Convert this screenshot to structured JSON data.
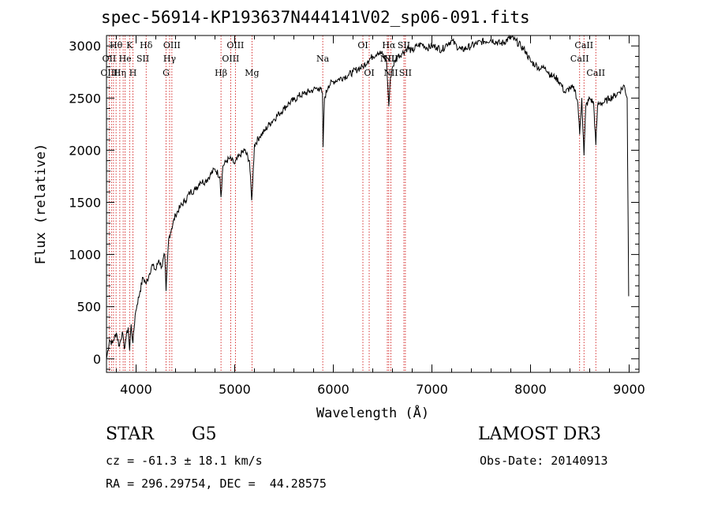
{
  "chart_data": {
    "type": "line",
    "title": "spec-56914-KP193637N444141V02_sp06-091.fits",
    "xlabel": "Wavelength (Å)",
    "ylabel": "Flux (relative)",
    "xlim": [
      3700,
      9100
    ],
    "ylim": [
      -130,
      3100
    ],
    "xticks": [
      4000,
      5000,
      6000,
      7000,
      8000,
      9000
    ],
    "yticks": [
      0,
      500,
      1000,
      1500,
      2000,
      2500,
      3000
    ],
    "grid": false,
    "series": [
      {
        "name": "flux",
        "x": [
          3700,
          3730,
          3760,
          3800,
          3830,
          3860,
          3880,
          3900,
          3920,
          3934,
          3950,
          3968,
          3990,
          4010,
          4040,
          4070,
          4102,
          4130,
          4160,
          4200,
          4230,
          4260,
          4290,
          4304,
          4330,
          4360,
          4400,
          4450,
          4500,
          4550,
          4600,
          4650,
          4700,
          4750,
          4800,
          4850,
          4861,
          4880,
          4920,
          4950,
          5000,
          5050,
          5100,
          5150,
          5172,
          5183,
          5200,
          5250,
          5300,
          5350,
          5400,
          5450,
          5500,
          5550,
          5600,
          5650,
          5700,
          5750,
          5800,
          5850,
          5890,
          5896,
          5910,
          5950,
          6000,
          6050,
          6100,
          6150,
          6200,
          6250,
          6300,
          6350,
          6400,
          6450,
          6500,
          6540,
          6563,
          6580,
          6600,
          6650,
          6700,
          6750,
          6800,
          6850,
          6900,
          6950,
          7000,
          7050,
          7100,
          7150,
          7200,
          7250,
          7300,
          7400,
          7500,
          7600,
          7700,
          7800,
          7850,
          7900,
          7950,
          8000,
          8050,
          8100,
          8150,
          8200,
          8250,
          8300,
          8350,
          8400,
          8450,
          8480,
          8498,
          8520,
          8542,
          8560,
          8600,
          8640,
          8662,
          8680,
          8700,
          8750,
          8800,
          8850,
          8900,
          8950,
          8980,
          8995
        ],
        "y": [
          0,
          180,
          150,
          250,
          120,
          260,
          100,
          210,
          300,
          80,
          330,
          150,
          420,
          520,
          650,
          780,
          720,
          800,
          900,
          850,
          950,
          880,
          1000,
          650,
          1150,
          1250,
          1380,
          1460,
          1520,
          1600,
          1620,
          1700,
          1700,
          1760,
          1820,
          1750,
          1550,
          1850,
          1900,
          1920,
          1870,
          1950,
          2000,
          1900,
          1520,
          1700,
          2050,
          2130,
          2180,
          2250,
          2300,
          2350,
          2400,
          2450,
          2480,
          2520,
          2540,
          2560,
          2580,
          2600,
          2550,
          2030,
          2500,
          2620,
          2660,
          2680,
          2700,
          2720,
          2750,
          2780,
          2800,
          2860,
          2900,
          2940,
          2920,
          2850,
          2420,
          2700,
          2800,
          2900,
          2930,
          2980,
          2950,
          3000,
          3020,
          2980,
          3000,
          2990,
          2960,
          3020,
          3050,
          3000,
          2960,
          3000,
          3040,
          3060,
          3020,
          3080,
          3050,
          3000,
          2950,
          2850,
          2820,
          2780,
          2800,
          2720,
          2700,
          2650,
          2550,
          2600,
          2580,
          2450,
          2150,
          2500,
          1950,
          2420,
          2500,
          2450,
          2050,
          2430,
          2450,
          2460,
          2500,
          2520,
          2560,
          2620,
          2500,
          600
        ]
      }
    ],
    "line_markers": [
      {
        "label": "Hθ",
        "x": 3797,
        "row": 0
      },
      {
        "label": "OII",
        "x": 3727,
        "row": 1
      },
      {
        "label": "OIII",
        "x": 3727,
        "row": 2
      },
      {
        "label": "Hη",
        "x": 3835,
        "row": 2
      },
      {
        "label": "He",
        "x": 3889,
        "row": 1
      },
      {
        "label": "K",
        "x": 3934,
        "row": 0
      },
      {
        "label": "H",
        "x": 3968,
        "row": 2
      },
      {
        "label": "Hδ",
        "x": 4102,
        "row": 0
      },
      {
        "label": "SII",
        "x": 4069,
        "row": 1
      },
      {
        "label": "OIII",
        "x": 4363,
        "row": 0
      },
      {
        "label": "Hγ",
        "x": 4340,
        "row": 1
      },
      {
        "label": "G",
        "x": 4304,
        "row": 2
      },
      {
        "label": "Hβ",
        "x": 4861,
        "row": 2
      },
      {
        "label": "OIII",
        "x": 5007,
        "row": 0
      },
      {
        "label": "OIII",
        "x": 4959,
        "row": 1
      },
      {
        "label": "Mg",
        "x": 5175,
        "row": 2
      },
      {
        "label": "Na",
        "x": 5893,
        "row": 1
      },
      {
        "label": "OI",
        "x": 6300,
        "row": 0
      },
      {
        "label": "OI",
        "x": 6364,
        "row": 2
      },
      {
        "label": "Hα",
        "x": 6563,
        "row": 0
      },
      {
        "label": "SII",
        "x": 6716,
        "row": 0
      },
      {
        "label": "NII",
        "x": 6548,
        "row": 1
      },
      {
        "label": "NII",
        "x": 6584,
        "row": 1
      },
      {
        "label": "NII",
        "x": 6584,
        "row": 2
      },
      {
        "label": "SII",
        "x": 6731,
        "row": 2
      },
      {
        "label": "CaII",
        "x": 8542,
        "row": 0
      },
      {
        "label": "CaII",
        "x": 8498,
        "row": 1
      },
      {
        "label": "CaII",
        "x": 8662,
        "row": 2
      }
    ],
    "marker_lines_x": [
      3727,
      3750,
      3771,
      3797,
      3835,
      3869,
      3889,
      3934,
      3968,
      4102,
      4304,
      4340,
      4363,
      4861,
      4959,
      5007,
      5175,
      5893,
      6300,
      6364,
      6548,
      6563,
      6584,
      6716,
      6731,
      8498,
      8542,
      8662
    ]
  },
  "info": {
    "object_class": "STAR",
    "subclass": "G5",
    "survey": "LAMOST DR3",
    "redshift": "cz = -61.3 ± 18.1 km/s",
    "obs_date": "Obs-Date: 20140913",
    "coords": "RA = 296.29754, DEC =  44.28575"
  },
  "colors": {
    "line": "#000000",
    "marker": "#cc0000",
    "axis": "#000000"
  }
}
